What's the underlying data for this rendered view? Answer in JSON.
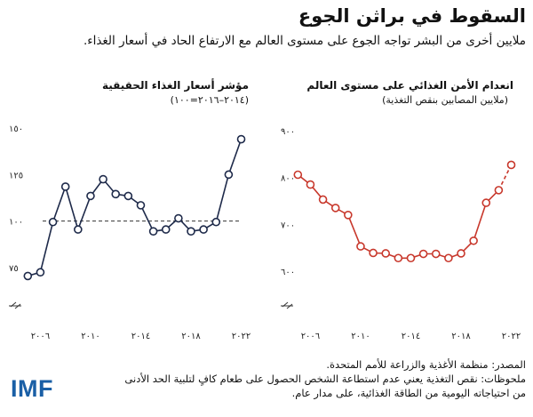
{
  "title": "السقوط في براثن الجوع",
  "subtitle": "ملايين أخرى من البشر تواجه الجوع على مستوى العالم مع الارتفاع الحاد في أسعار الغذاء.",
  "chart_data": [
    {
      "type": "line",
      "title": "مؤشر أسعار الغذاء الحقيقية",
      "subtitle": "(٢٠١٤–٢٠١٦=١٠٠)",
      "color": "#1e2a4a",
      "x": [
        2005,
        2006,
        2007,
        2008,
        2009,
        2010,
        2011,
        2012,
        2013,
        2014,
        2015,
        2016,
        2017,
        2018,
        2019,
        2020,
        2021,
        2022
      ],
      "y": [
        70.5,
        72.5,
        99.5,
        118.5,
        95.5,
        113.5,
        122.5,
        114.5,
        113.5,
        108.5,
        94.5,
        95.5,
        101.5,
        94.5,
        95.5,
        99.5,
        125.0,
        144.0
      ],
      "ylim": [
        75,
        150
      ],
      "yticks": [
        75,
        100,
        125,
        150
      ],
      "ytick_labels": [
        "٧٥",
        "١٠٠",
        "١٢٥",
        "١٥٠"
      ],
      "xticks": [
        2006,
        2010,
        2014,
        2018,
        2022
      ],
      "xtick_labels": [
        "٢٠٠٦",
        "٢٠١٠",
        "٢٠١٤",
        "٢٠١٨",
        "٢٠٢٢"
      ],
      "reference_line": 100,
      "axis_break": true
    },
    {
      "type": "line",
      "title": "انعدام الأمن الغذائي على مستوى العالم",
      "subtitle": "(ملايين المصابين بنقص التغذية)",
      "color": "#c8382c",
      "x": [
        2005,
        2006,
        2007,
        2008,
        2009,
        2010,
        2011,
        2012,
        2013,
        2014,
        2015,
        2016,
        2017,
        2018,
        2019,
        2020,
        2021
      ],
      "y": [
        806,
        785,
        753,
        735,
        720,
        653,
        639,
        638,
        628,
        628,
        637,
        637,
        628,
        638,
        665,
        746,
        773
      ],
      "projected": {
        "x": [
          2021,
          2022
        ],
        "y": [
          773,
          827
        ]
      },
      "ylim": [
        600,
        900
      ],
      "yticks": [
        600,
        700,
        800,
        900
      ],
      "ytick_labels": [
        "٦٠٠",
        "٧٠٠",
        "٨٠٠",
        "٩٠٠"
      ],
      "xticks": [
        2006,
        2010,
        2014,
        2018,
        2022
      ],
      "xtick_labels": [
        "٢٠٠٦",
        "٢٠١٠",
        "٢٠١٤",
        "٢٠١٨",
        "٢٠٢٢"
      ],
      "axis_break": true
    }
  ],
  "footer": {
    "source": "المصدر: منظمة الأغذية والزراعة للأمم المتحدة.",
    "note_line1": "ملحوظات: نقص التغذية يعني عدم استطاعة الشخص الحصول على طعام كافٍ لتلبية الحد الأدنى",
    "note_line2": "من احتياجاته اليومية من الطاقة الغذائية، على مدار عام.",
    "logo": "IMF"
  }
}
